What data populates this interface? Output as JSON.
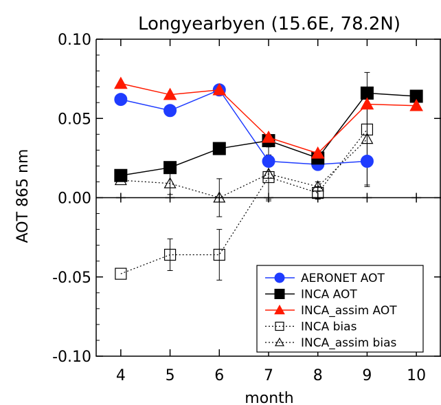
{
  "chart_data": {
    "type": "line",
    "title": "Longyearbyen (15.6E, 78.2N)",
    "xlabel": "month",
    "ylabel": "AOT 865 nm",
    "xlim": [
      3.5,
      10.5
    ],
    "ylim": [
      -0.1,
      0.1
    ],
    "xticks": [
      "4",
      "5",
      "6",
      "7",
      "8",
      "9",
      "10"
    ],
    "yticks": [
      "-0.10",
      "-0.05",
      "0.00",
      "0.05",
      "0.10"
    ],
    "legend_position": "bottom-right",
    "series": [
      {
        "name": "AERONET AOT",
        "color": "#1f3cff",
        "marker": "circle-filled",
        "line": "solid",
        "x": [
          4,
          5,
          6,
          7,
          8,
          9
        ],
        "y": [
          0.062,
          0.055,
          0.068,
          0.023,
          0.021,
          0.023
        ]
      },
      {
        "name": "INCA AOT",
        "color": "#000000",
        "marker": "square-filled",
        "line": "solid",
        "x": [
          4,
          5,
          6,
          7,
          8,
          9,
          10
        ],
        "y": [
          0.014,
          0.019,
          0.031,
          0.036,
          0.025,
          0.066,
          0.064
        ]
      },
      {
        "name": "INCA_assim AOT",
        "color": "#ff1a00",
        "marker": "triangle-filled",
        "line": "solid",
        "x": [
          4,
          5,
          6,
          7,
          8,
          9,
          10
        ],
        "y": [
          0.072,
          0.065,
          0.068,
          0.038,
          0.028,
          0.059,
          0.058
        ]
      },
      {
        "name": "INCA bias",
        "color": "#000000",
        "marker": "square-open",
        "line": "dotted",
        "x": [
          4,
          5,
          6,
          7,
          8,
          9
        ],
        "y": [
          -0.048,
          -0.036,
          -0.036,
          0.013,
          0.003,
          0.043
        ],
        "err": [
          0,
          0.01,
          0.016,
          0.014,
          0.004,
          0.036
        ]
      },
      {
        "name": "INCA_assim bias",
        "color": "#000000",
        "marker": "triangle-open",
        "line": "dotted",
        "x": [
          4,
          5,
          6,
          7,
          8,
          9
        ],
        "y": [
          0.011,
          0.009,
          0.0,
          0.015,
          0.007,
          0.037
        ],
        "err": [
          0,
          0.007,
          0.012,
          0.017,
          0.003,
          0.029
        ]
      }
    ],
    "zero_line_markers": {
      "x": [
        4,
        5,
        6,
        7,
        8,
        9,
        10
      ],
      "y": 0
    }
  }
}
